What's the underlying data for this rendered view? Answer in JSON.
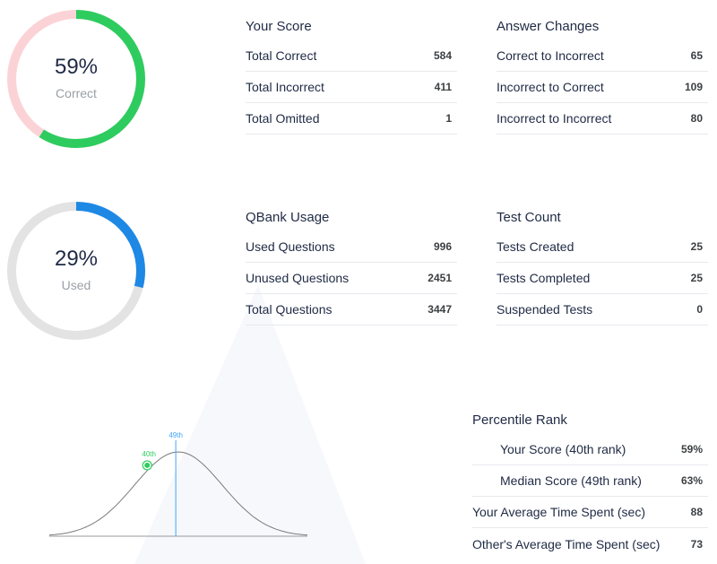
{
  "colors": {
    "correct": "#2ecc5f",
    "incorrect_track": "#fbd3d6",
    "used": "#1e88e5",
    "unused_track": "#e3e3e3",
    "text": "#1f2a44",
    "muted": "#9aa0a6",
    "divider": "#e7e9ee",
    "median_line": "#42a5f5"
  },
  "score_donut": {
    "value_text": "59%",
    "label": "Correct",
    "fraction": 0.59
  },
  "usage_donut": {
    "value_text": "29%",
    "label": "Used",
    "fraction": 0.29
  },
  "your_score": {
    "title": "Your Score",
    "rows": [
      {
        "label": "Total Correct",
        "value": "584"
      },
      {
        "label": "Total Incorrect",
        "value": "411"
      },
      {
        "label": "Total Omitted",
        "value": "1"
      }
    ]
  },
  "answer_changes": {
    "title": "Answer Changes",
    "rows": [
      {
        "label": "Correct to Incorrect",
        "value": "65"
      },
      {
        "label": "Incorrect to Correct",
        "value": "109"
      },
      {
        "label": "Incorrect to Incorrect",
        "value": "80"
      }
    ]
  },
  "qbank_usage": {
    "title": "QBank Usage",
    "rows": [
      {
        "label": "Used Questions",
        "value": "996"
      },
      {
        "label": "Unused Questions",
        "value": "2451"
      },
      {
        "label": "Total Questions",
        "value": "3447"
      }
    ]
  },
  "test_count": {
    "title": "Test Count",
    "rows": [
      {
        "label": "Tests Created",
        "value": "25"
      },
      {
        "label": "Tests Completed",
        "value": "25"
      },
      {
        "label": "Suspended Tests",
        "value": "0"
      }
    ]
  },
  "percentile_rank": {
    "title": "Percentile Rank",
    "rows": [
      {
        "label": "Your Score (40th rank)",
        "value": "59%"
      },
      {
        "label": "Median Score (49th rank)",
        "value": "63%"
      },
      {
        "label": "Your Average Time Spent (sec)",
        "value": "88"
      },
      {
        "label": "Other's Average Time Spent (sec)",
        "value": "73"
      }
    ]
  },
  "bell_curve": {
    "your_label": "40th",
    "median_label": "49th",
    "your_percentile": 40,
    "median_percentile": 49
  }
}
